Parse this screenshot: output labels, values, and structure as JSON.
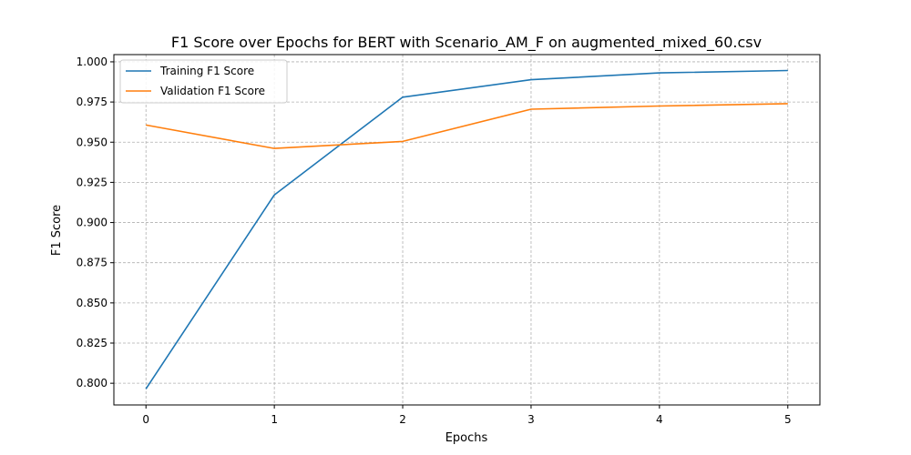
{
  "chart_data": {
    "type": "line",
    "title": "F1 Score over Epochs for BERT with Scenario_AM_F on augmented_mixed_60.csv",
    "xlabel": "Epochs",
    "ylabel": "F1 Score",
    "x": [
      0,
      1,
      2,
      3,
      4,
      5
    ],
    "xticks": [
      "0",
      "1",
      "2",
      "3",
      "4",
      "5"
    ],
    "yticks": [
      "0.800",
      "0.825",
      "0.850",
      "0.875",
      "0.900",
      "0.925",
      "0.950",
      "0.975",
      "1.000"
    ],
    "ylim": [
      0.7865,
      1.0045
    ],
    "xlim": [
      -0.25,
      5.25
    ],
    "grid": true,
    "legend_position": "top-left",
    "series": [
      {
        "name": "Training F1 Score",
        "color": "#1f77b4",
        "values": [
          0.7965,
          0.9172,
          0.978,
          0.9889,
          0.9931,
          0.9946
        ]
      },
      {
        "name": "Validation F1 Score",
        "color": "#ff7f0e",
        "values": [
          0.9607,
          0.9461,
          0.9505,
          0.9705,
          0.9725,
          0.974
        ]
      }
    ]
  }
}
